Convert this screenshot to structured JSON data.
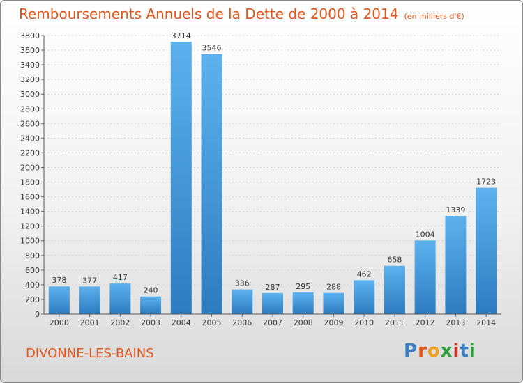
{
  "title": "Remboursements Annuels de la Dette de 2000 à 2014",
  "unit": "(en milliers d'€)",
  "commune": "DIVONNE-LES-BAINS",
  "logo": "Proxiti",
  "colors": {
    "accent": "#e2571c",
    "bar_light": "#5cb0ec",
    "bar_dark": "#2f7fc0"
  },
  "chart_data": {
    "type": "bar",
    "categories": [
      "2000",
      "2001",
      "2002",
      "2003",
      "2004",
      "2005",
      "2006",
      "2007",
      "2008",
      "2009",
      "2010",
      "2011",
      "2012",
      "2013",
      "2014"
    ],
    "values": [
      378,
      377,
      417,
      240,
      3714,
      3546,
      336,
      287,
      295,
      288,
      462,
      658,
      1004,
      1339,
      1723
    ],
    "ylim": [
      0,
      3800
    ],
    "yticks": [
      0,
      200,
      400,
      600,
      800,
      1000,
      1200,
      1400,
      1600,
      1800,
      2000,
      2200,
      2400,
      2600,
      2800,
      3000,
      3200,
      3400,
      3600,
      3800
    ],
    "grid": true,
    "title": "Remboursements Annuels de la Dette de 2000 à 2014",
    "xlabel": "",
    "ylabel": ""
  }
}
